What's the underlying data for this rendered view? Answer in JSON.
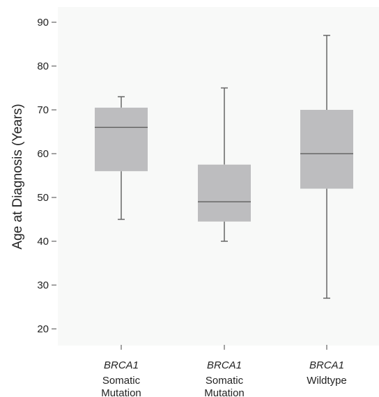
{
  "chart_data": {
    "type": "boxplot",
    "ylabel": "Age at Diagnosis (Years)",
    "ylim": [
      16,
      94
    ],
    "yticks": [
      20,
      30,
      40,
      50,
      60,
      70,
      80,
      90
    ],
    "grid": false,
    "colors": {
      "background": "#f8f9f8",
      "box": "#bdbdbf",
      "median": "#666666",
      "whisker": "#666666"
    },
    "categories": [
      {
        "gene": "BRCA1",
        "lines": [
          "Somatic",
          "Mutation"
        ]
      },
      {
        "gene": "BRCA1",
        "lines": [
          "Somatic",
          "Mutation"
        ]
      },
      {
        "gene": "BRCA1",
        "lines": [
          "Wildtype"
        ]
      }
    ],
    "boxes": [
      {
        "min": 45,
        "q1": 56,
        "median": 66,
        "q3": 70.5,
        "max": 73
      },
      {
        "min": 40,
        "q1": 44.5,
        "median": 49,
        "q3": 57.5,
        "max": 75
      },
      {
        "min": 27,
        "q1": 52,
        "median": 60,
        "q3": 70,
        "max": 87
      }
    ]
  }
}
